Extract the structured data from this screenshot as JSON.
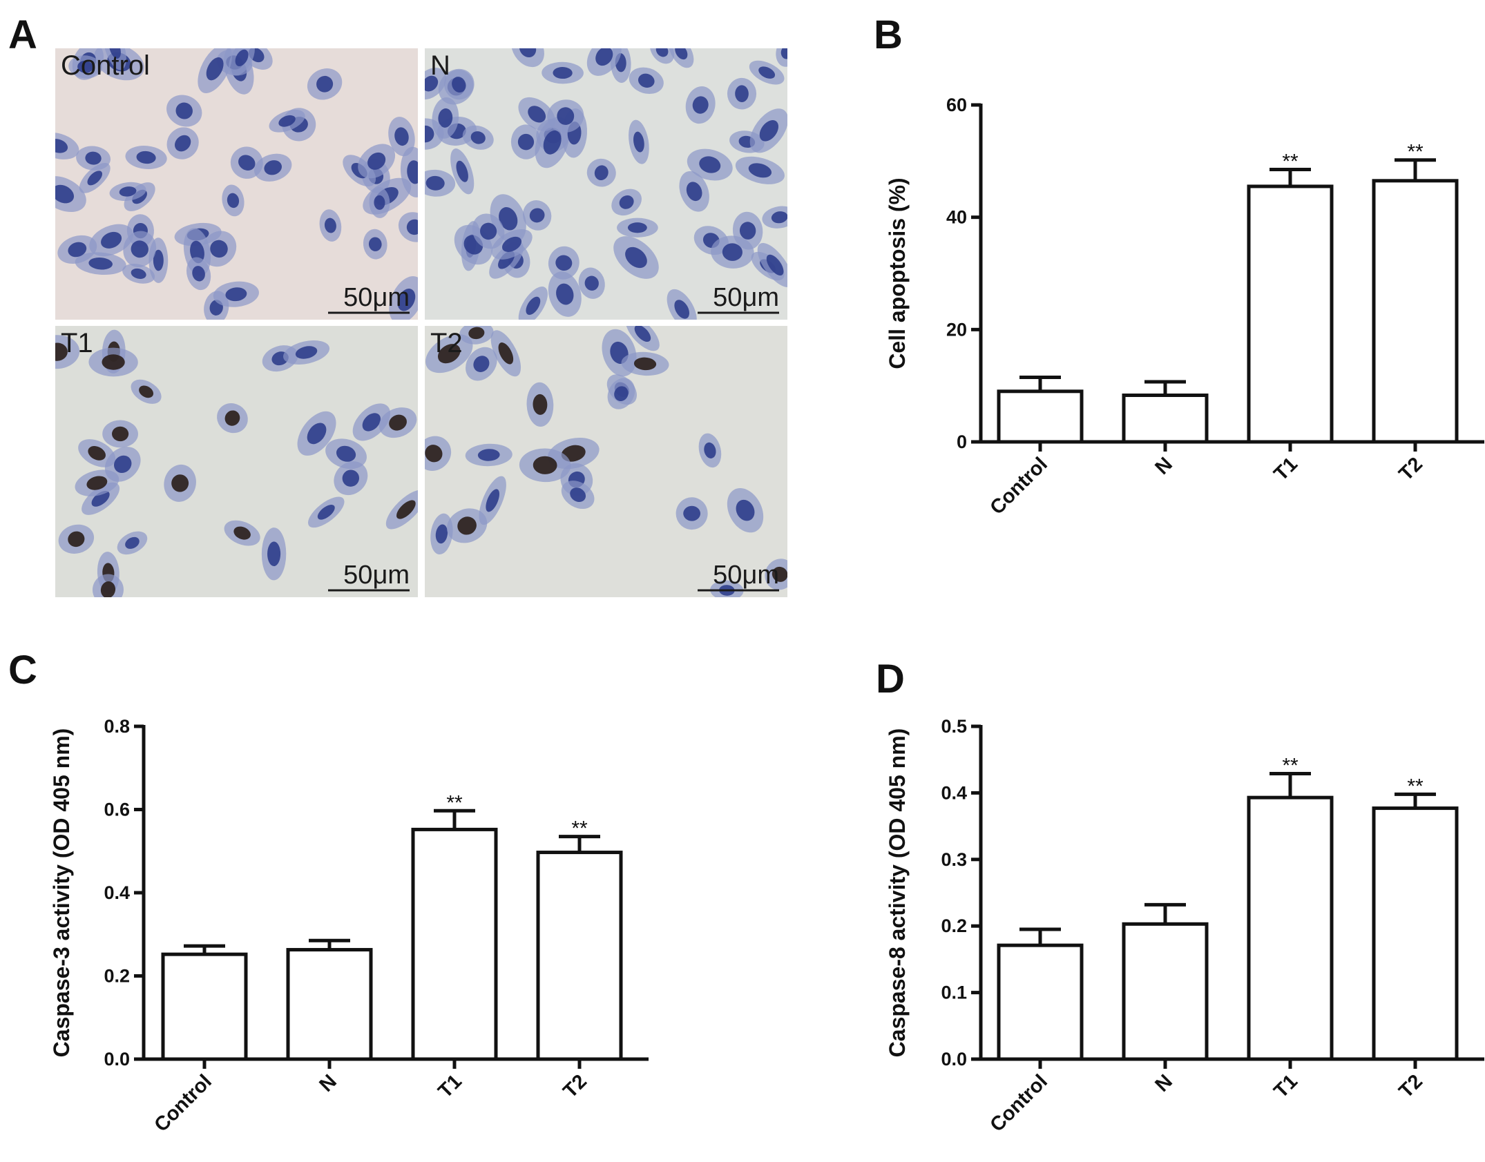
{
  "panels": {
    "A": {
      "letter": "A"
    },
    "B": {
      "letter": "B"
    },
    "C": {
      "letter": "C"
    },
    "D": {
      "letter": "D"
    }
  },
  "micrographs": [
    {
      "label": "Control",
      "scale": "50μm",
      "bg": "#e6dcd9"
    },
    {
      "label": "N",
      "scale": "50μm",
      "bg": "#dde0dd"
    },
    {
      "label": "T1",
      "scale": "50μm",
      "bg": "#dcded9"
    },
    {
      "label": "T2",
      "scale": "50μm",
      "bg": "#dedfda"
    }
  ],
  "chart_data": [
    {
      "panel": "B",
      "type": "bar",
      "categories": [
        "Control",
        "N",
        "T1",
        "T2"
      ],
      "values": [
        9,
        8.3,
        45.5,
        46.5
      ],
      "errors": [
        2.5,
        2.4,
        3.0,
        3.7
      ],
      "significance": [
        "",
        "",
        "**",
        "**"
      ],
      "ylabel": "Cell apoptosis (%)",
      "ylim": [
        0,
        60
      ],
      "yticks": [
        "0",
        "20",
        "40",
        "60"
      ]
    },
    {
      "panel": "C",
      "type": "bar",
      "categories": [
        "Control",
        "N",
        "T1",
        "T2"
      ],
      "values": [
        0.252,
        0.263,
        0.552,
        0.497
      ],
      "errors": [
        0.02,
        0.022,
        0.045,
        0.038
      ],
      "significance": [
        "",
        "",
        "**",
        "**"
      ],
      "ylabel": "Caspase-3 activity (OD 405 nm)",
      "ylim": [
        0,
        0.8
      ],
      "yticks": [
        "0.0",
        "0.2",
        "0.4",
        "0.6",
        "0.8"
      ]
    },
    {
      "panel": "D",
      "type": "bar",
      "categories": [
        "Control",
        "N",
        "T1",
        "T2"
      ],
      "values": [
        0.171,
        0.203,
        0.393,
        0.377
      ],
      "errors": [
        0.024,
        0.029,
        0.036,
        0.021
      ],
      "significance": [
        "",
        "",
        "**",
        "**"
      ],
      "ylabel": "Caspase-8 activity (OD 405 nm)",
      "ylim": [
        0,
        0.5
      ],
      "yticks": [
        "0.0",
        "0.1",
        "0.2",
        "0.3",
        "0.4",
        "0.5"
      ]
    }
  ]
}
